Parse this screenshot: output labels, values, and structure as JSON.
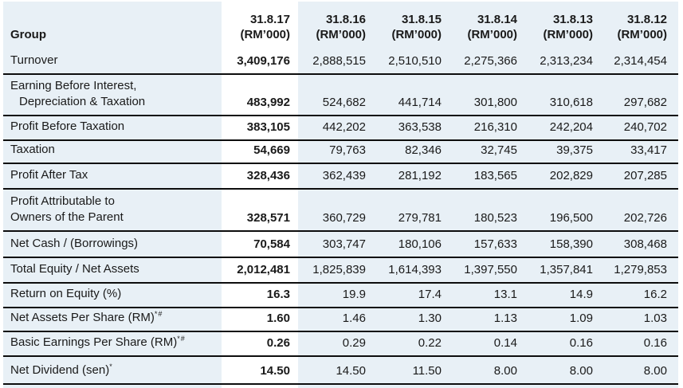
{
  "table": {
    "group_label": "Group",
    "columns": [
      {
        "date": "31.8.17",
        "unit": "(RM’000)",
        "highlight": true
      },
      {
        "date": "31.8.16",
        "unit": "(RM’000)",
        "highlight": false
      },
      {
        "date": "31.8.15",
        "unit": "(RM’000)",
        "highlight": false
      },
      {
        "date": "31.8.14",
        "unit": "(RM’000)",
        "highlight": false
      },
      {
        "date": "31.8.13",
        "unit": "(RM’000)",
        "highlight": false
      },
      {
        "date": "31.8.12",
        "unit": "(RM’000)",
        "highlight": false
      }
    ],
    "rows": [
      {
        "label_lines": [
          {
            "text": "Turnover",
            "indent": false
          }
        ],
        "sup": "",
        "values": [
          "3,409,176",
          "2,888,515",
          "2,510,510",
          "2,275,366",
          "2,313,234",
          "2,314,454"
        ]
      },
      {
        "label_lines": [
          {
            "text": "Earning Before Interest,",
            "indent": false
          },
          {
            "text": "Depreciation & Taxation",
            "indent": true
          }
        ],
        "sup": "",
        "values": [
          "483,992",
          "524,682",
          "441,714",
          "301,800",
          "310,618",
          "297,682"
        ]
      },
      {
        "label_lines": [
          {
            "text": "Profit Before Taxation",
            "indent": false
          }
        ],
        "sup": "",
        "values": [
          "383,105",
          "442,202",
          "363,538",
          "216,310",
          "242,204",
          "240,702"
        ]
      },
      {
        "label_lines": [
          {
            "text": "Taxation",
            "indent": false
          }
        ],
        "sup": "",
        "values": [
          "54,669",
          "79,763",
          "82,346",
          "32,745",
          "39,375",
          "33,417"
        ]
      },
      {
        "label_lines": [
          {
            "text": "Profit After Tax",
            "indent": false
          }
        ],
        "sup": "",
        "values": [
          "328,436",
          "362,439",
          "281,192",
          "183,565",
          "202,829",
          "207,285"
        ]
      },
      {
        "label_lines": [
          {
            "text": "Profit Attributable to",
            "indent": false
          },
          {
            "text": "Owners of the Parent",
            "indent": false
          }
        ],
        "sup": "",
        "values": [
          "328,571",
          "360,729",
          "279,781",
          "180,523",
          "196,500",
          "202,726"
        ]
      },
      {
        "label_lines": [
          {
            "text": "Net Cash / (Borrowings)",
            "indent": false
          }
        ],
        "sup": "",
        "values": [
          "70,584",
          "303,747",
          "180,106",
          "157,633",
          "158,390",
          "308,468"
        ]
      },
      {
        "label_lines": [
          {
            "text": "Total Equity / Net Assets",
            "indent": false
          }
        ],
        "sup": "",
        "values": [
          "2,012,481",
          "1,825,839",
          "1,614,393",
          "1,397,550",
          "1,357,841",
          "1,279,853"
        ]
      },
      {
        "label_lines": [
          {
            "text": "Return on Equity (%)",
            "indent": false
          }
        ],
        "sup": "",
        "values": [
          "16.3",
          "19.9",
          "17.4",
          "13.1",
          "14.9",
          "16.2"
        ]
      },
      {
        "label_lines": [
          {
            "text": "Net Assets Per Share (RM)",
            "indent": false
          }
        ],
        "sup": "*#",
        "values": [
          "1.60",
          "1.46",
          "1.30",
          "1.13",
          "1.09",
          "1.03"
        ]
      },
      {
        "label_lines": [
          {
            "text": "Basic Earnings Per Share (RM)",
            "indent": false
          }
        ],
        "sup": "*#",
        "values": [
          "0.26",
          "0.29",
          "0.22",
          "0.14",
          "0.16",
          "0.16"
        ]
      },
      {
        "label_lines": [
          {
            "text": "Net Dividend (sen)",
            "indent": false
          }
        ],
        "sup": "*",
        "values": [
          "14.50",
          "14.50",
          "11.50",
          "8.00",
          "8.00",
          "8.00"
        ]
      }
    ],
    "colors": {
      "page": "#ffffff",
      "background": "#e8f0f6",
      "highlight_column": "#ffffff",
      "rule": "#0d0d0d",
      "text": "#1a1a1a"
    }
  }
}
